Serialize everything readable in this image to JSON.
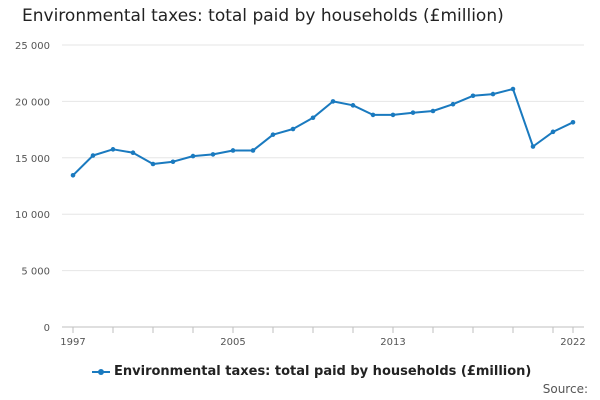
{
  "chart_data": {
    "type": "line",
    "title": "Environmental taxes: total paid by households (£million)",
    "xlabel": "",
    "ylabel": "",
    "x": [
      1997,
      1998,
      1999,
      2000,
      2001,
      2002,
      2003,
      2004,
      2005,
      2006,
      2007,
      2008,
      2009,
      2010,
      2011,
      2012,
      2013,
      2014,
      2015,
      2016,
      2017,
      2018,
      2019,
      2020,
      2021,
      2022
    ],
    "x_tick_labels": [
      "1997",
      "2005",
      "2013",
      "2022"
    ],
    "x_tick_values": [
      1997,
      2005,
      2013,
      2022
    ],
    "y_ticks": [
      0,
      5000,
      10000,
      15000,
      20000,
      25000
    ],
    "y_tick_labels": [
      "0",
      "5 000",
      "10 000",
      "15 000",
      "20 000",
      "25 000"
    ],
    "ylim": [
      0,
      25000
    ],
    "grid": true,
    "legend_position": "bottom",
    "series": [
      {
        "name": "Environmental taxes: total paid by households (£million)",
        "color": "#1a7abf",
        "values": [
          13450,
          15200,
          15750,
          15450,
          14450,
          14650,
          15150,
          15300,
          15650,
          15650,
          17050,
          17550,
          18550,
          20000,
          19650,
          18800,
          18800,
          19000,
          19150,
          19750,
          20500,
          20650,
          21100,
          16000,
          17300,
          18150
        ]
      }
    ]
  },
  "footer": {
    "source_label": "Source:"
  }
}
